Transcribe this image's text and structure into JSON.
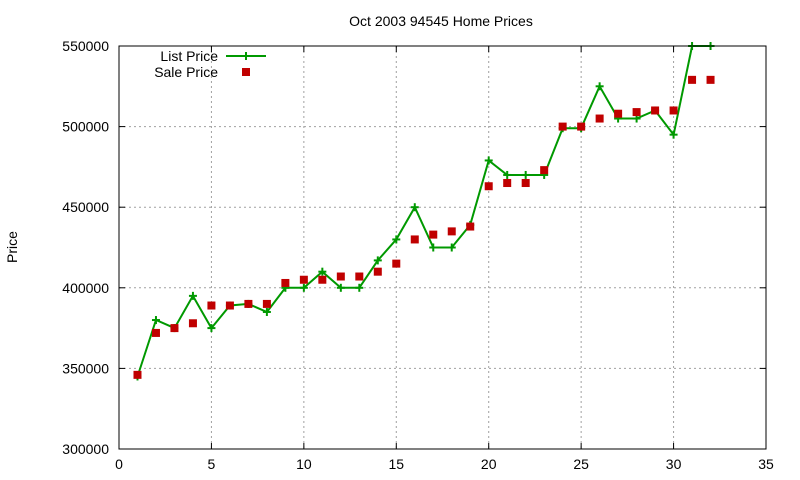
{
  "chart_data": {
    "type": "line",
    "title": "Oct 2003 94545 Home Prices",
    "xlabel": "",
    "ylabel": "Price",
    "xlim": [
      0,
      35
    ],
    "ylim": [
      300000,
      550000
    ],
    "x_ticks": [
      0,
      5,
      10,
      15,
      20,
      25,
      30,
      35
    ],
    "y_ticks": [
      300000,
      350000,
      400000,
      450000,
      500000,
      550000
    ],
    "grid": true,
    "legend_position": "top-left",
    "series": [
      {
        "name": "List Price",
        "style": "line-with-plus-markers",
        "color": "#009900",
        "x": [
          1,
          2,
          3,
          4,
          5,
          6,
          7,
          8,
          9,
          10,
          11,
          12,
          13,
          14,
          15,
          16,
          17,
          18,
          19,
          20,
          21,
          22,
          23,
          24,
          25,
          26,
          27,
          28,
          29,
          30,
          31,
          32
        ],
        "values": [
          345000,
          380000,
          375000,
          395000,
          375000,
          389000,
          390000,
          385000,
          400000,
          400000,
          410000,
          400000,
          400000,
          417000,
          430000,
          450000,
          425000,
          425000,
          439000,
          479000,
          470000,
          470000,
          470000,
          499000,
          499000,
          525000,
          505000,
          505000,
          510000,
          495000,
          550000,
          550000
        ]
      },
      {
        "name": "Sale Price",
        "style": "square-markers",
        "color": "#c00000",
        "x": [
          1,
          2,
          3,
          4,
          5,
          6,
          7,
          8,
          9,
          10,
          11,
          12,
          13,
          14,
          15,
          16,
          17,
          18,
          19,
          20,
          21,
          22,
          23,
          24,
          25,
          26,
          27,
          28,
          29,
          30,
          31,
          32
        ],
        "values": [
          346000,
          372000,
          375000,
          378000,
          389000,
          389000,
          390000,
          390000,
          403000,
          405000,
          405000,
          407000,
          407000,
          410000,
          415000,
          430000,
          433000,
          435000,
          438000,
          463000,
          465000,
          465000,
          473000,
          500000,
          500000,
          505000,
          508000,
          509000,
          510000,
          510000,
          529000,
          529000
        ]
      }
    ]
  }
}
